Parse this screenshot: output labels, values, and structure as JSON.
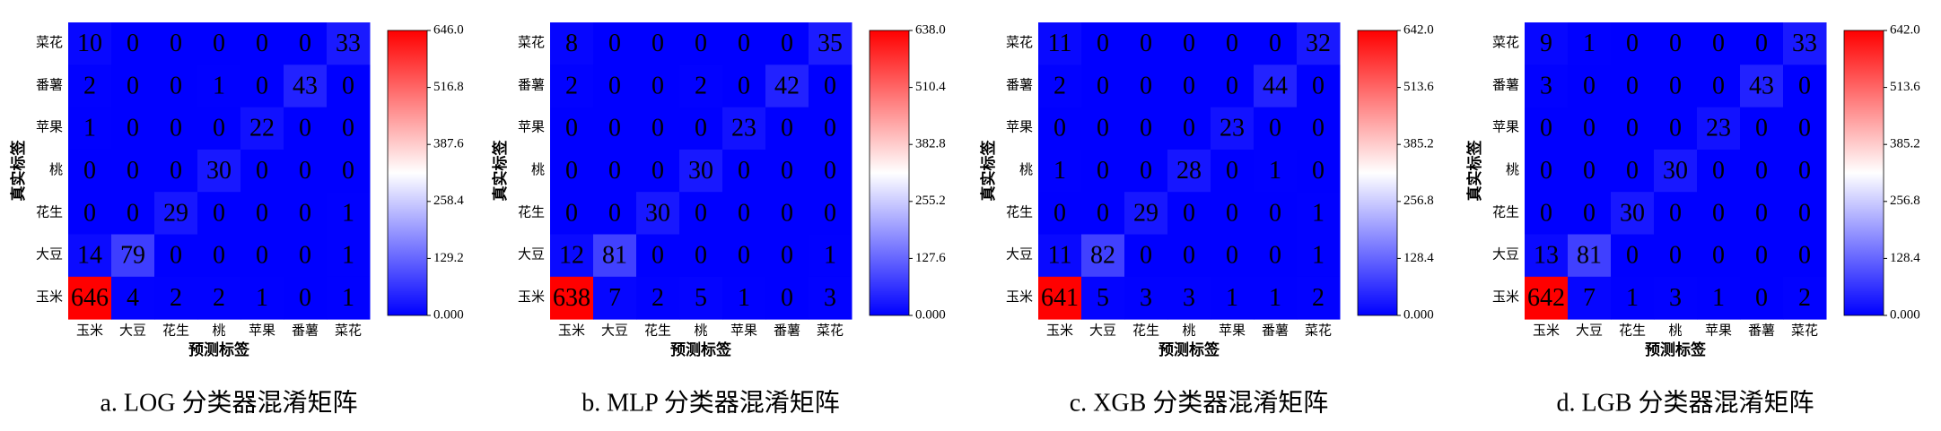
{
  "chart_data": [
    {
      "type": "heatmap",
      "title": "a. LOG 分类器混淆矩阵",
      "x_label": "预测标签",
      "y_label": "真实标签",
      "x_categories": [
        "玉米",
        "大豆",
        "花生",
        "桃",
        "苹果",
        "番薯",
        "菜花"
      ],
      "y_categories": [
        "菜花",
        "番薯",
        "苹果",
        "桃",
        "花生",
        "大豆",
        "玉米"
      ],
      "values": [
        [
          10,
          0,
          0,
          0,
          0,
          0,
          33
        ],
        [
          2,
          0,
          0,
          1,
          0,
          43,
          0
        ],
        [
          1,
          0,
          0,
          0,
          22,
          0,
          0
        ],
        [
          0,
          0,
          0,
          30,
          0,
          0,
          0
        ],
        [
          0,
          0,
          29,
          0,
          0,
          0,
          1
        ],
        [
          14,
          79,
          0,
          0,
          0,
          0,
          1
        ],
        [
          646,
          4,
          2,
          2,
          1,
          0,
          1
        ]
      ],
      "colormap": [
        "#0000ff",
        "#ffffff",
        "#ff0000"
      ],
      "clim": [
        0,
        646
      ],
      "cticks": [
        {
          "value": 0,
          "label": "0.000"
        },
        129.2,
        258.4,
        387.6,
        516.8,
        {
          "value": 646,
          "label": "646.0"
        }
      ]
    },
    {
      "type": "heatmap",
      "title": "b. MLP 分类器混淆矩阵",
      "x_label": "预测标签",
      "y_label": "真实标签",
      "x_categories": [
        "玉米",
        "大豆",
        "花生",
        "桃",
        "苹果",
        "番薯",
        "菜花"
      ],
      "y_categories": [
        "菜花",
        "番薯",
        "苹果",
        "桃",
        "花生",
        "大豆",
        "玉米"
      ],
      "values": [
        [
          8,
          0,
          0,
          0,
          0,
          0,
          35
        ],
        [
          2,
          0,
          0,
          2,
          0,
          42,
          0
        ],
        [
          0,
          0,
          0,
          0,
          23,
          0,
          0
        ],
        [
          0,
          0,
          0,
          30,
          0,
          0,
          0
        ],
        [
          0,
          0,
          30,
          0,
          0,
          0,
          0
        ],
        [
          12,
          81,
          0,
          0,
          0,
          0,
          1
        ],
        [
          638,
          7,
          2,
          5,
          1,
          0,
          3
        ]
      ],
      "colormap": [
        "#0000ff",
        "#ffffff",
        "#ff0000"
      ],
      "clim": [
        0,
        638
      ],
      "cticks": [
        {
          "value": 0,
          "label": "0.000"
        },
        127.6,
        255.2,
        382.8,
        510.4,
        {
          "value": 638,
          "label": "638.0"
        }
      ]
    },
    {
      "type": "heatmap",
      "title": "c. XGB 分类器混淆矩阵",
      "x_label": "预测标签",
      "y_label": "真实标签",
      "x_categories": [
        "玉米",
        "大豆",
        "花生",
        "桃",
        "苹果",
        "番薯",
        "菜花"
      ],
      "y_categories": [
        "菜花",
        "番薯",
        "苹果",
        "桃",
        "花生",
        "大豆",
        "玉米"
      ],
      "values": [
        [
          11,
          0,
          0,
          0,
          0,
          0,
          32
        ],
        [
          2,
          0,
          0,
          0,
          0,
          44,
          0
        ],
        [
          0,
          0,
          0,
          0,
          23,
          0,
          0
        ],
        [
          1,
          0,
          0,
          28,
          0,
          1,
          0
        ],
        [
          0,
          0,
          29,
          0,
          0,
          0,
          1
        ],
        [
          11,
          82,
          0,
          0,
          0,
          0,
          1
        ],
        [
          641,
          5,
          3,
          3,
          1,
          1,
          2
        ]
      ],
      "colormap": [
        "#0000ff",
        "#ffffff",
        "#ff0000"
      ],
      "clim": [
        0,
        642
      ],
      "cticks": [
        {
          "value": 0,
          "label": "0.000"
        },
        128.4,
        256.8,
        385.2,
        513.6,
        {
          "value": 642,
          "label": "642.0"
        }
      ]
    },
    {
      "type": "heatmap",
      "title": "d. LGB 分类器混淆矩阵",
      "x_label": "预测标签",
      "y_label": "真实标签",
      "x_categories": [
        "玉米",
        "大豆",
        "花生",
        "桃",
        "苹果",
        "番薯",
        "菜花"
      ],
      "y_categories": [
        "菜花",
        "番薯",
        "苹果",
        "桃",
        "花生",
        "大豆",
        "玉米"
      ],
      "values": [
        [
          9,
          1,
          0,
          0,
          0,
          0,
          33
        ],
        [
          3,
          0,
          0,
          0,
          0,
          43,
          0
        ],
        [
          0,
          0,
          0,
          0,
          23,
          0,
          0
        ],
        [
          0,
          0,
          0,
          30,
          0,
          0,
          0
        ],
        [
          0,
          0,
          30,
          0,
          0,
          0,
          0
        ],
        [
          13,
          81,
          0,
          0,
          0,
          0,
          0
        ],
        [
          642,
          7,
          1,
          3,
          1,
          0,
          2
        ]
      ],
      "colormap": [
        "#0000ff",
        "#ffffff",
        "#ff0000"
      ],
      "clim": [
        0,
        642
      ],
      "cticks": [
        {
          "value": 0,
          "label": "0.000"
        },
        128.4,
        256.8,
        385.2,
        513.6,
        {
          "value": 642,
          "label": "642.0"
        }
      ]
    }
  ]
}
